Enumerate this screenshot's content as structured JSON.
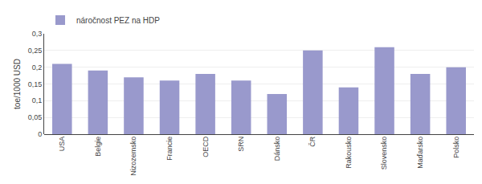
{
  "chart_data": {
    "type": "bar",
    "categories": [
      "USA",
      "Belgie",
      "Nizozemsko",
      "Francie",
      "OECD",
      "SRN",
      "Dánsko",
      "ČR",
      "Rakousko",
      "Slovensko",
      "Maďarsko",
      "Polsko"
    ],
    "series": [
      {
        "name": "náročnost PEZ na HDP",
        "color": "#9999cc",
        "values": [
          0.21,
          0.19,
          0.17,
          0.16,
          0.18,
          0.16,
          0.12,
          0.25,
          0.14,
          0.26,
          0.18,
          0.2
        ]
      }
    ],
    "ylabel": "toe/1000 USD",
    "ylim": [
      0,
      0.3
    ],
    "yticks": [
      0,
      {
        "value": 0.05,
        "label": "0,05"
      },
      {
        "value": 0.1,
        "label": "0,1"
      },
      {
        "value": 0.15,
        "label": "0,15"
      },
      {
        "value": 0.2,
        "label": "0,2"
      },
      {
        "value": 0.25,
        "label": "0,25"
      },
      {
        "value": 0.3,
        "label": "0,3"
      }
    ],
    "grid": true,
    "legend": "upper left"
  }
}
